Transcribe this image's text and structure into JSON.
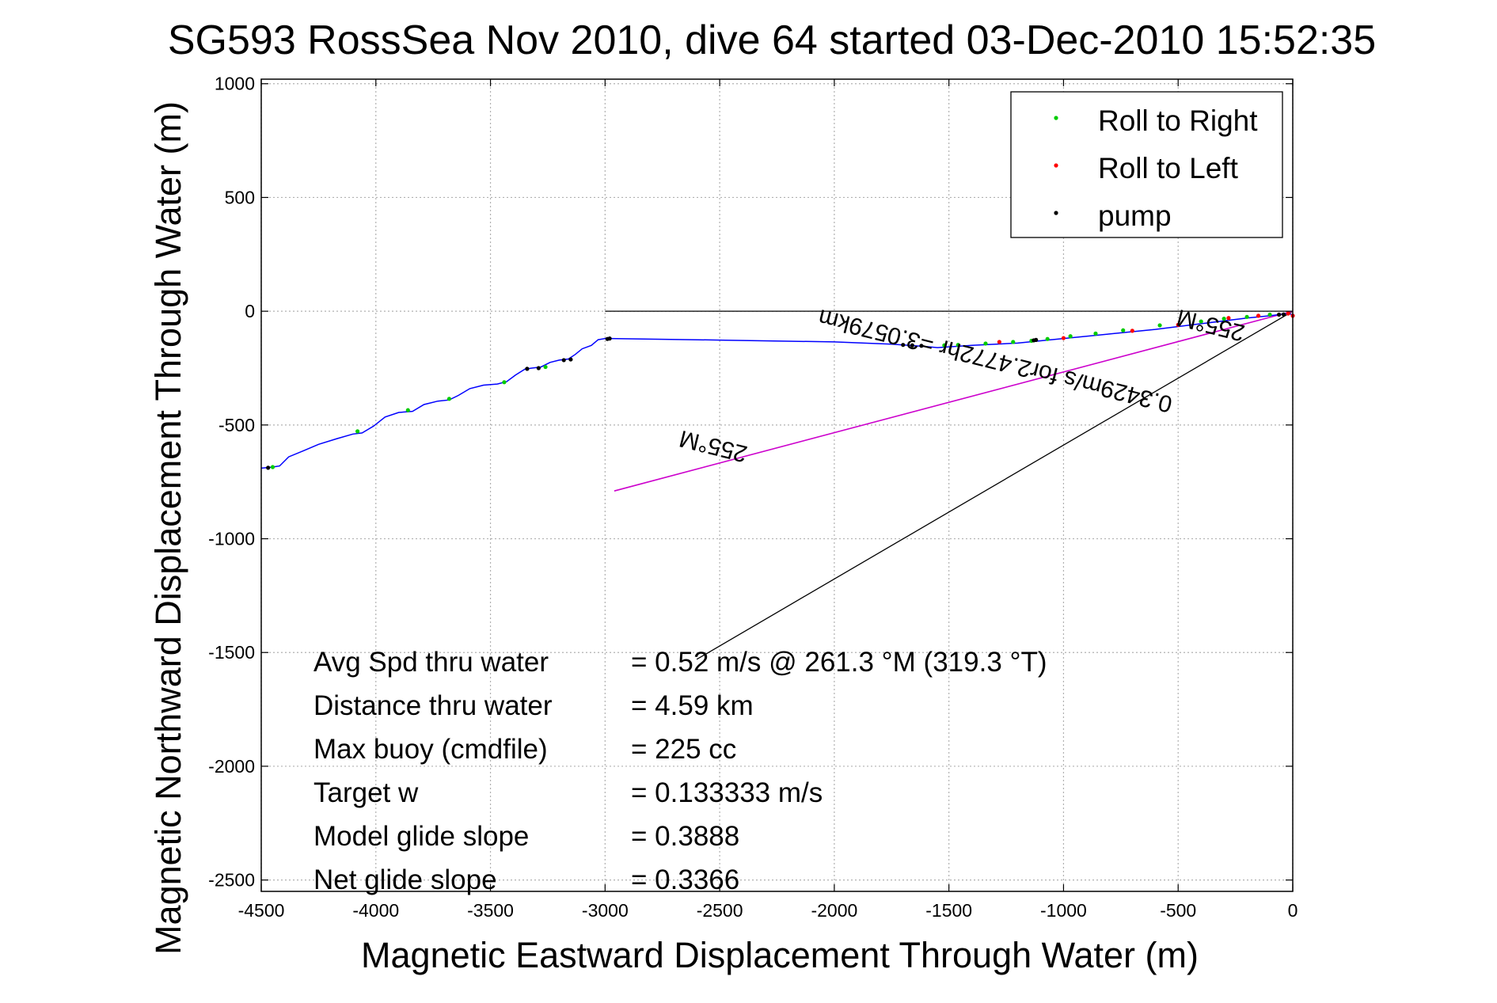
{
  "chart_data": {
    "type": "line",
    "title": "SG593 RossSea Nov 2010, dive 64 started 03-Dec-2010 15:52:35",
    "xlabel": "Magnetic Eastward Displacement Through Water (m)",
    "ylabel": "Magnetic Northward Displacement Through Water (m)",
    "xlim": [
      -4500,
      0
    ],
    "ylim": [
      -2550,
      1020
    ],
    "xticks": [
      -4500,
      -4000,
      -3500,
      -3000,
      -2500,
      -2000,
      -1500,
      -1000,
      -500,
      0
    ],
    "yticks": [
      1000,
      500,
      0,
      -500,
      -1000,
      -1500,
      -2000,
      -2500
    ],
    "grid": true,
    "legend_position": "top-right",
    "legend": [
      {
        "label": "Roll to Right",
        "color": "#00cc00"
      },
      {
        "label": "Roll to Left",
        "color": "#ff0000"
      },
      {
        "label": "pump",
        "color": "#000000"
      }
    ],
    "colors": {
      "track": "#0000ff",
      "average_line": "#cc00cc",
      "reference_line": "#000000",
      "grid": "#b0b0b0"
    },
    "series": [
      {
        "name": "track",
        "x": [
          -4500,
          -4450,
          -4420,
          -4380,
          -4320,
          -4250,
          -4170,
          -4100,
          -4060,
          -4010,
          -3960,
          -3900,
          -3840,
          -3790,
          -3730,
          -3680,
          -3640,
          -3590,
          -3530,
          -3470,
          -3430,
          -3390,
          -3350,
          -3320,
          -3280,
          -3240,
          -3200,
          -3160,
          -3130,
          -3100,
          -3060,
          -3030,
          -3000,
          -2980,
          -2500,
          -2000,
          -1750,
          -1600,
          -1550,
          -1400,
          -1200,
          -1000,
          -800,
          -600,
          -400,
          -200,
          -100,
          -20,
          0
        ],
        "y": [
          -690,
          -685,
          -680,
          -640,
          -615,
          -585,
          -560,
          -540,
          -535,
          -505,
          -465,
          -445,
          -440,
          -410,
          -395,
          -390,
          -370,
          -340,
          -325,
          -320,
          -310,
          -280,
          -255,
          -250,
          -245,
          -225,
          -215,
          -210,
          -190,
          -165,
          -150,
          -125,
          -120,
          -120,
          -127,
          -135,
          -145,
          -155,
          -160,
          -150,
          -140,
          -120,
          -100,
          -80,
          -55,
          -30,
          -20,
          -10,
          -15
        ]
      }
    ],
    "markers": {
      "roll_right": {
        "x": [
          -4450,
          -4080,
          -3860,
          -3680,
          -3440,
          -3260,
          -1520,
          -1460,
          -1340,
          -1220,
          -1140,
          -1070,
          -970,
          -860,
          -740,
          -580,
          -400,
          -300,
          -200,
          -100
        ],
        "y": [
          -685,
          -528,
          -435,
          -385,
          -312,
          -245,
          -150,
          -148,
          -142,
          -135,
          -130,
          -122,
          -110,
          -98,
          -84,
          -62,
          -45,
          -33,
          -25,
          -15
        ]
      },
      "roll_left": {
        "x": [
          -1280,
          -1000,
          -700,
          -500,
          -280,
          -150,
          -60,
          -20,
          0
        ],
        "y": [
          -135,
          -118,
          -86,
          -60,
          -30,
          -20,
          -15,
          -10,
          -20
        ]
      },
      "pump": {
        "x": [
          -4470,
          -3340,
          -3290,
          -3180,
          -3150,
          -2990,
          -2980,
          -1700,
          -1660,
          -1620,
          -1130,
          -1120,
          -60,
          -40
        ],
        "y": [
          -688,
          -253,
          -250,
          -215,
          -212,
          -122,
          -120,
          -148,
          -150,
          -152,
          -128,
          -126,
          -15,
          -14
        ]
      }
    },
    "average_line": {
      "x": [
        -2960,
        0
      ],
      "y": [
        -790,
        0
      ]
    },
    "reference_line": {
      "x": [
        -2600,
        0
      ],
      "y": [
        -1530,
        0
      ]
    },
    "zero_line": {
      "x": [
        -3000,
        0
      ],
      "y": [
        0,
        0
      ]
    },
    "annotations": [
      {
        "text": "255°M",
        "x": -350,
        "y": -28,
        "rotation_deg": 194
      },
      {
        "text": "0.3429m/s for2.4772hr =3.0579km",
        "x": -1290,
        "y": -185,
        "rotation_deg": 194
      },
      {
        "text": "255°M",
        "x": -2520,
        "y": -560,
        "rotation_deg": 194
      }
    ],
    "stats": [
      {
        "label": "Avg Spd thru water",
        "value": "=  0.52 m/s @ 261.3 °M (319.3 °T)"
      },
      {
        "label": "Distance thru water",
        "value": "=  4.59 km"
      },
      {
        "label": "Max buoy (cmdfile)",
        "value": "= 225 cc"
      },
      {
        "label": "Target w",
        "value": "= 0.133333 m/s"
      },
      {
        "label": "Model glide slope",
        "value": "= 0.3888"
      },
      {
        "label": "Net glide slope",
        "value": "= 0.3366"
      }
    ]
  }
}
